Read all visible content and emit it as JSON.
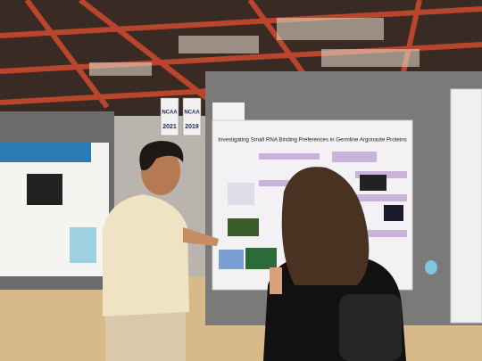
{
  "poster": {
    "title": "Investigating Small RNA Binding Preferences in Germline Argonaute Proteins"
  },
  "banners": [
    {
      "label": "NCAA",
      "year": "2021"
    },
    {
      "label": "NCAA",
      "year": "2019"
    }
  ]
}
